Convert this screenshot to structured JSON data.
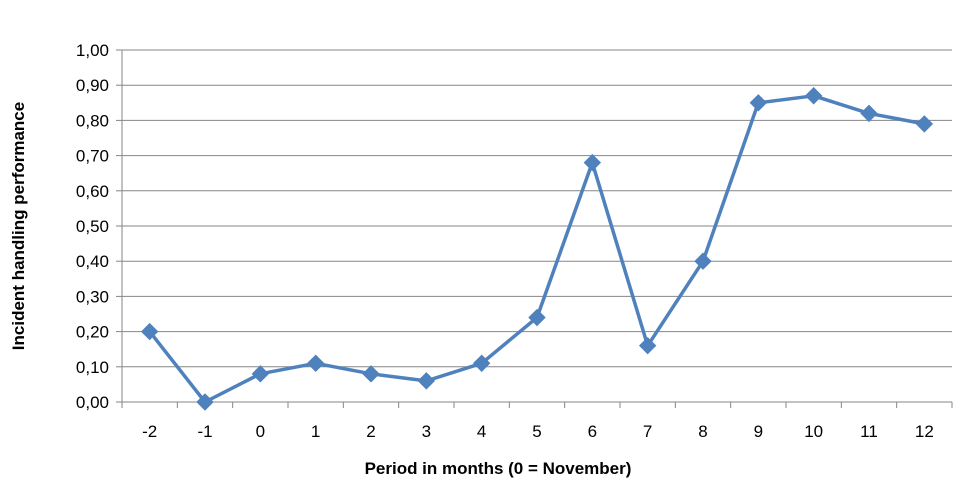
{
  "chart_data": {
    "type": "line",
    "title": "",
    "xlabel": "Period in months (0 = November)",
    "ylabel": "Incident handling performance",
    "categories": [
      "-2",
      "-1",
      "0",
      "1",
      "2",
      "3",
      "4",
      "5",
      "6",
      "7",
      "8",
      "9",
      "10",
      "11",
      "12"
    ],
    "series": [
      {
        "values": [
          0.2,
          0.0,
          0.08,
          0.11,
          0.08,
          0.06,
          0.11,
          0.24,
          0.68,
          0.16,
          0.4,
          0.85,
          0.87,
          0.82,
          0.79
        ],
        "color": "#4f81bd",
        "marker": "diamond"
      }
    ],
    "ylim": [
      0,
      1.0
    ],
    "yticks": [
      "0,00",
      "0,10",
      "0,20",
      "0,30",
      "0,40",
      "0,50",
      "0,60",
      "0,70",
      "0,80",
      "0,90",
      "1,00"
    ],
    "grid": true,
    "grid_color": "#868686",
    "legend": "none"
  }
}
